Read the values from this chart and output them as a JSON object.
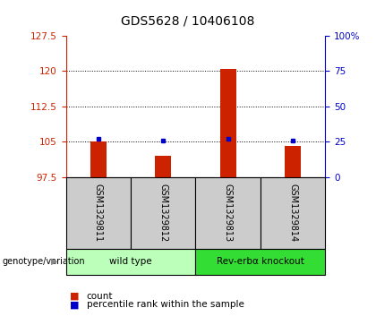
{
  "title": "GDS5628 / 10406108",
  "samples": [
    "GSM1329811",
    "GSM1329812",
    "GSM1329813",
    "GSM1329814"
  ],
  "bar_values": [
    105.1,
    102.1,
    120.5,
    104.2
  ],
  "bar_base": 97.5,
  "blue_dot_values": [
    105.65,
    105.35,
    105.55,
    105.35
  ],
  "ylim_left": [
    97.5,
    127.5
  ],
  "yticks_left": [
    97.5,
    105.0,
    112.5,
    120.0,
    127.5
  ],
  "ytick_labels_left": [
    "97.5",
    "105",
    "112.5",
    "120",
    "127.5"
  ],
  "ylim_right": [
    0,
    100
  ],
  "yticks_right": [
    0,
    25,
    50,
    75,
    100
  ],
  "ytick_labels_right": [
    "0",
    "25",
    "50",
    "75",
    "100%"
  ],
  "bar_color": "#cc2200",
  "dot_color": "#0000cc",
  "label_color_left": "#cc2200",
  "label_color_right": "#0000cc",
  "groups": [
    {
      "label": "wild type",
      "samples": [
        0,
        1
      ],
      "color": "#bbffbb"
    },
    {
      "label": "Rev-erbα knockout",
      "samples": [
        2,
        3
      ],
      "color": "#33dd33"
    }
  ],
  "xlabel_group": "genotype/variation",
  "legend_items": [
    {
      "color": "#cc2200",
      "label": "count"
    },
    {
      "color": "#0000cc",
      "label": "percentile rank within the sample"
    }
  ],
  "plot_bg": "#ffffff",
  "sample_area_bg": "#cccccc",
  "bar_width": 0.25,
  "title_fontsize": 10,
  "tick_fontsize": 7.5,
  "sample_fontsize": 7.0,
  "group_fontsize": 7.5,
  "legend_fontsize": 7.5
}
